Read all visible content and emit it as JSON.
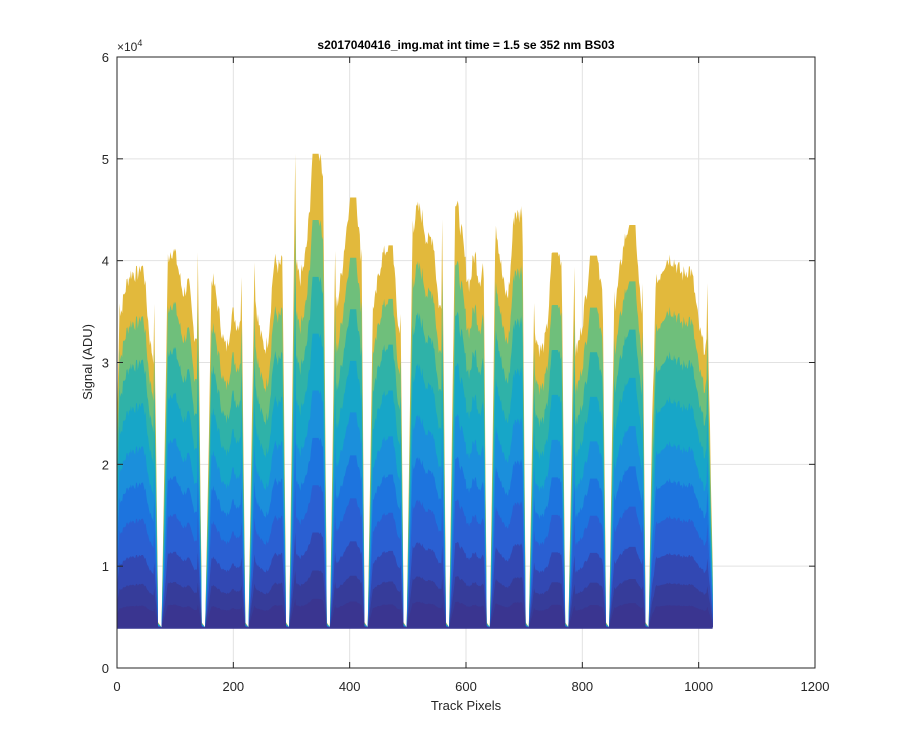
{
  "chart_data": {
    "type": "area",
    "title": "s2017040416_img.mat int time = 1.5 se  352 nm BS03",
    "xlabel": "Track Pixels",
    "ylabel": "Signal (ADU)",
    "xlim": [
      0,
      1200
    ],
    "ylim": [
      0,
      6
    ],
    "y_multiplier": "×10",
    "y_multiplier_exp": "4",
    "x_ticks": [
      "0",
      "200",
      "400",
      "600",
      "800",
      "1000",
      "1200"
    ],
    "y_ticks": [
      "0",
      "1",
      "2",
      "3",
      "4",
      "5",
      "6"
    ],
    "grid": true,
    "baseline": 0.4,
    "x_start": 0,
    "x_end": 1024,
    "segments": [
      {
        "start": 0,
        "end": 70,
        "peak": 3.95
      },
      {
        "start": 83,
        "end": 145,
        "peak": 4.18
      },
      {
        "start": 158,
        "end": 220,
        "peak": 3.95
      },
      {
        "start": 232,
        "end": 290,
        "peak": 4.12
      },
      {
        "start": 302,
        "end": 360,
        "peak": 5.05
      },
      {
        "start": 372,
        "end": 425,
        "peak": 4.62
      },
      {
        "start": 437,
        "end": 492,
        "peak": 4.15
      },
      {
        "start": 504,
        "end": 565,
        "peak": 4.58
      },
      {
        "start": 577,
        "end": 635,
        "peak": 4.65
      },
      {
        "start": 647,
        "end": 702,
        "peak": 4.78
      },
      {
        "start": 714,
        "end": 770,
        "peak": 4.08
      },
      {
        "start": 782,
        "end": 840,
        "peak": 4.05
      },
      {
        "start": 852,
        "end": 908,
        "peak": 4.35
      },
      {
        "start": 920,
        "end": 1024,
        "peak": 4.1
      }
    ],
    "layers": [
      {
        "fraction": 1.0,
        "color": "#e2b93c"
      },
      {
        "fraction": 0.86,
        "color": "#6fbf7b"
      },
      {
        "fraction": 0.74,
        "color": "#2fb2a8"
      },
      {
        "fraction": 0.62,
        "color": "#17a6c8"
      },
      {
        "fraction": 0.5,
        "color": "#1b8fdb"
      },
      {
        "fraction": 0.4,
        "color": "#1d74de"
      },
      {
        "fraction": 0.3,
        "color": "#2a5fd2"
      },
      {
        "fraction": 0.2,
        "color": "#3248b3"
      },
      {
        "fraction": 0.12,
        "color": "#363c9a"
      },
      {
        "fraction": 0.06,
        "color": "#3a3590"
      }
    ]
  }
}
